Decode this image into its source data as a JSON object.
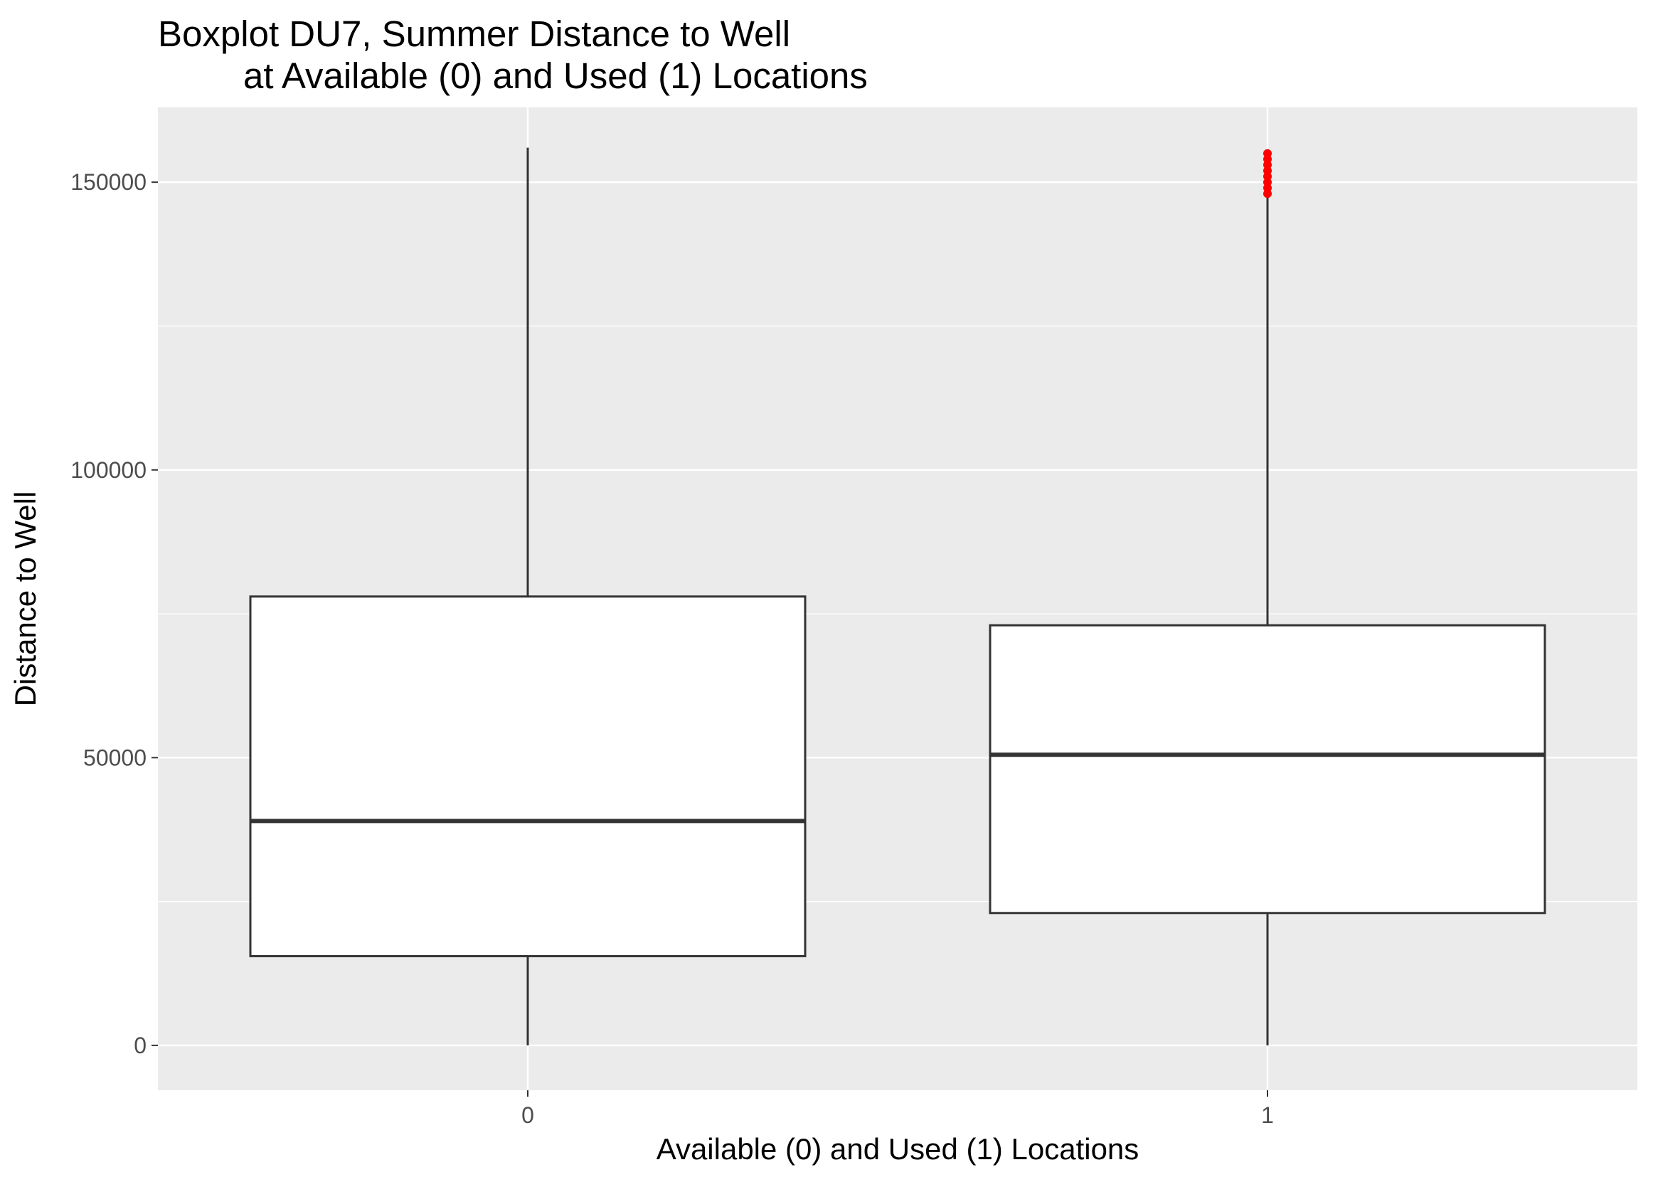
{
  "chart_data": {
    "type": "boxplot",
    "title": [
      "Boxplot DU7, Summer Distance to Well",
      "at Available (0) and Used (1) Locations"
    ],
    "xlabel": "Available (0) and Used (1) Locations",
    "ylabel": "Distance to Well",
    "categories": [
      "0",
      "1"
    ],
    "ylim": [
      -7800,
      163000
    ],
    "y_ticks": [
      0,
      50000,
      100000,
      150000
    ],
    "y_tick_labels": [
      "0",
      "50000",
      "100000",
      "150000"
    ],
    "grid": true,
    "boxes": [
      {
        "category": "0",
        "min": 0,
        "q1": 15500,
        "median": 39000,
        "q3": 78000,
        "max": 156000,
        "outliers": []
      },
      {
        "category": "1",
        "min": 0,
        "q1": 23000,
        "median": 50500,
        "q3": 73000,
        "max": 148000,
        "outliers": [
          148000,
          149000,
          150000,
          151000,
          152000,
          153000,
          154000,
          155000
        ]
      }
    ],
    "colors": {
      "panel": "#ebebeb",
      "grid": "#ffffff",
      "box_fill": "#ffffff",
      "box_line": "#333333",
      "outlier": "#ff0000"
    }
  }
}
